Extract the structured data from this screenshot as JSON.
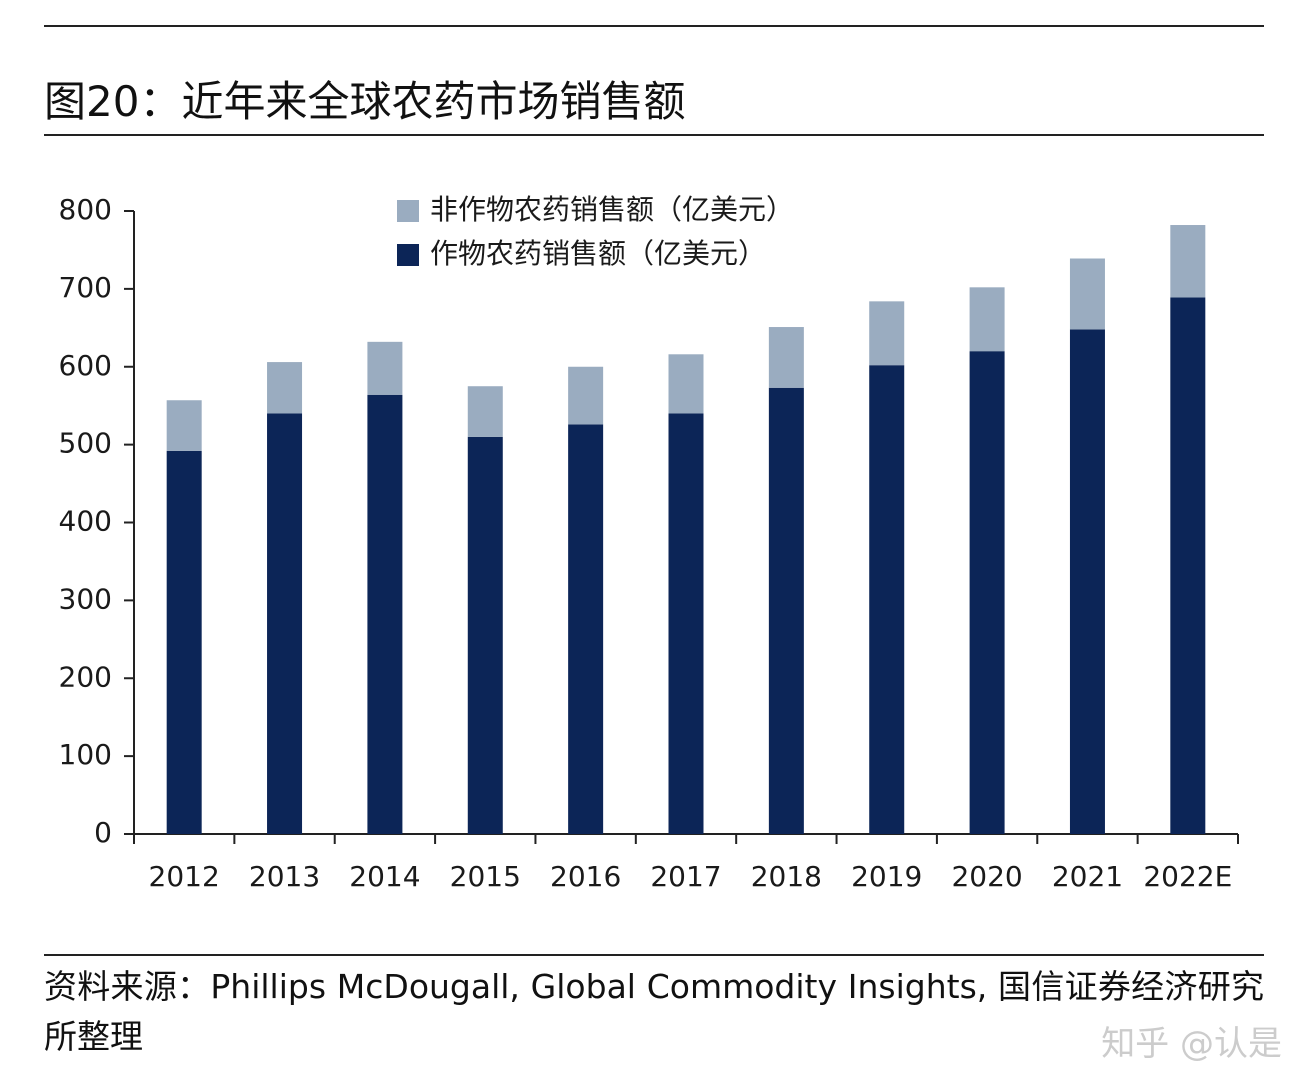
{
  "title": "图20：近年来全球农药市场销售额",
  "chart_data": {
    "type": "stacked-bar",
    "categories": [
      "2012",
      "2013",
      "2014",
      "2015",
      "2016",
      "2017",
      "2018",
      "2019",
      "2020",
      "2021",
      "2022E"
    ],
    "series": [
      {
        "name": "作物农药销售额（亿美元）",
        "color": "#0c2557",
        "values": [
          492,
          540,
          564,
          510,
          526,
          540,
          573,
          602,
          620,
          648,
          689
        ]
      },
      {
        "name": "非作物农药销售额（亿美元）",
        "color": "#9aacc0",
        "values": [
          65,
          66,
          68,
          65,
          74,
          76,
          78,
          82,
          82,
          91,
          93
        ]
      }
    ],
    "ylim": [
      0,
      800
    ],
    "yticks": [
      0,
      100,
      200,
      300,
      400,
      500,
      600,
      700,
      800
    ],
    "grid": false
  },
  "source": "资料来源：Phillips McDougall, Global Commodity Insights, 国信证券经济研究所整理",
  "watermark": "知乎 @认是"
}
